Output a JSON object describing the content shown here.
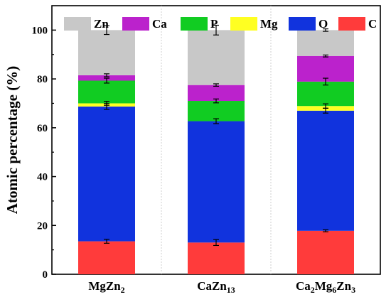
{
  "chart_data": {
    "type": "bar",
    "stacked": true,
    "title": "",
    "xlabel": "",
    "ylabel": "Atomic percentage (%)",
    "ylim": [
      0,
      110
    ],
    "yticks": [
      0,
      20,
      40,
      60,
      80,
      100
    ],
    "grid": false,
    "legend": {
      "placement": "top",
      "order": [
        "Zn",
        "Ca",
        "P",
        "Mg",
        "O",
        "C"
      ]
    },
    "categories": [
      {
        "parts": [
          {
            "t": "MgZn",
            "sub": false
          },
          {
            "t": "2",
            "sub": true
          }
        ]
      },
      {
        "parts": [
          {
            "t": "CaZn",
            "sub": false
          },
          {
            "t": "13",
            "sub": true
          }
        ]
      },
      {
        "parts": [
          {
            "t": "Ca",
            "sub": false
          },
          {
            "t": "2",
            "sub": true
          },
          {
            "t": "Mg",
            "sub": false
          },
          {
            "t": "6",
            "sub": true
          },
          {
            "t": "Zn",
            "sub": false
          },
          {
            "t": "3",
            "sub": true
          }
        ]
      }
    ],
    "series": [
      {
        "name": "C",
        "color": "#ff3b3b",
        "values": [
          13.5,
          13.0,
          17.8
        ],
        "errors": [
          0.8,
          1.2,
          0.4
        ]
      },
      {
        "name": "O",
        "color": "#1133dd",
        "values": [
          55.2,
          49.7,
          49.2
        ],
        "errors": [
          1.2,
          1.0,
          1.0
        ]
      },
      {
        "name": "Mg",
        "color": "#ffff22",
        "values": [
          1.3,
          0.0,
          1.9
        ],
        "errors": [
          0.8,
          0.0,
          0.9
        ]
      },
      {
        "name": "P",
        "color": "#11cc22",
        "values": [
          9.3,
          8.3,
          10.0
        ],
        "errors": [
          1.0,
          0.8,
          1.4
        ]
      },
      {
        "name": "Ca",
        "color": "#bb22cc",
        "values": [
          2.2,
          6.5,
          10.5
        ],
        "errors": [
          0.6,
          0.5,
          0.4
        ]
      },
      {
        "name": "Zn",
        "color": "#c8c8c8",
        "values": [
          18.5,
          22.5,
          10.6
        ],
        "errors": [
          1.8,
          2.0,
          0.5
        ]
      }
    ]
  }
}
